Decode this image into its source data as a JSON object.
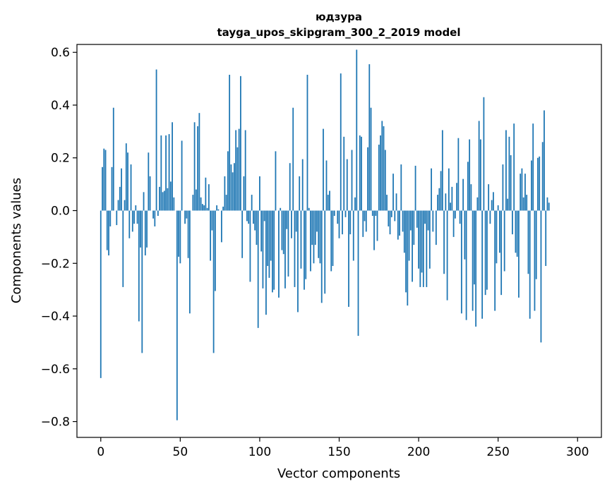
{
  "chart_data": {
    "type": "bar",
    "title_line1": "юдзура",
    "title_line2": "tayga_upos_skipgram_300_2_2019 model",
    "xlabel": "Vector components",
    "ylabel": "Components values",
    "xlim": [
      -15,
      315
    ],
    "ylim": [
      -0.86,
      0.63
    ],
    "x_ticks": [
      0,
      50,
      100,
      150,
      200,
      250,
      300
    ],
    "x_tick_labels": [
      "0",
      "50",
      "100",
      "150",
      "200",
      "250",
      "300"
    ],
    "y_ticks": [
      -0.8,
      -0.6,
      -0.4,
      -0.2,
      0.0,
      0.2,
      0.4,
      0.6
    ],
    "y_tick_labels": [
      "−0.8",
      "−0.6",
      "−0.4",
      "−0.2",
      "0.0",
      "0.2",
      "0.4",
      "0.6"
    ],
    "bar_color": "#1f77b4",
    "grid": false,
    "x": "0..299 (component index)",
    "values": [
      -0.635,
      0.165,
      0.235,
      0.23,
      -0.15,
      -0.17,
      -0.06,
      0.165,
      0.39,
      0.0,
      -0.055,
      0.04,
      0.09,
      0.16,
      -0.29,
      0.04,
      0.255,
      0.22,
      -0.105,
      0.175,
      -0.08,
      -0.05,
      0.02,
      -0.05,
      -0.42,
      -0.14,
      -0.54,
      0.07,
      -0.17,
      -0.14,
      0.22,
      0.13,
      0.0,
      -0.03,
      -0.06,
      0.535,
      -0.02,
      0.09,
      0.285,
      0.07,
      0.075,
      0.285,
      0.085,
      0.29,
      0.11,
      0.335,
      0.05,
      0.0,
      -0.795,
      -0.175,
      -0.2,
      0.265,
      0.0,
      -0.05,
      -0.03,
      -0.18,
      -0.39,
      0.0,
      0.06,
      0.335,
      0.08,
      0.32,
      0.37,
      0.05,
      0.025,
      0.02,
      0.125,
      0.01,
      0.1,
      -0.19,
      -0.075,
      -0.54,
      -0.305,
      0.02,
      0.005,
      0.0,
      -0.12,
      0.015,
      0.13,
      0.06,
      0.225,
      0.515,
      0.175,
      0.145,
      0.18,
      0.305,
      0.24,
      0.31,
      0.51,
      -0.18,
      0.13,
      0.305,
      -0.04,
      -0.05,
      -0.27,
      0.06,
      -0.05,
      -0.075,
      -0.13,
      -0.445,
      0.13,
      -0.155,
      -0.295,
      -0.04,
      -0.395,
      -0.21,
      -0.255,
      -0.19,
      -0.31,
      -0.3,
      0.225,
      0.0,
      -0.33,
      0.01,
      -0.15,
      -0.165,
      -0.295,
      -0.07,
      -0.25,
      0.18,
      -0.105,
      0.39,
      -0.29,
      -0.08,
      -0.385,
      0.13,
      -0.22,
      0.195,
      -0.3,
      -0.26,
      0.515,
      0.01,
      -0.23,
      -0.13,
      -0.2,
      -0.13,
      -0.08,
      -0.18,
      -0.2,
      -0.35,
      0.31,
      -0.315,
      0.19,
      0.06,
      0.075,
      -0.23,
      -0.21,
      -0.02,
      0.0,
      -0.05,
      -0.105,
      0.52,
      -0.09,
      0.28,
      -0.025,
      0.195,
      -0.365,
      -0.09,
      0.23,
      -0.19,
      0.05,
      0.61,
      -0.475,
      0.285,
      0.28,
      -0.1,
      -0.04,
      -0.08,
      0.24,
      0.555,
      0.39,
      -0.02,
      -0.15,
      -0.02,
      -0.115,
      0.25,
      0.285,
      0.34,
      0.32,
      0.23,
      0.06,
      -0.06,
      -0.09,
      -0.025,
      0.14,
      -0.04,
      0.065,
      -0.11,
      -0.095,
      0.175,
      -0.08,
      -0.16,
      -0.31,
      -0.36,
      -0.19,
      -0.075,
      -0.27,
      -0.13,
      0.17,
      -0.065,
      -0.22,
      -0.29,
      -0.235,
      -0.29,
      -0.05,
      -0.29,
      -0.075,
      -0.22,
      0.16,
      -0.08,
      0.0,
      -0.13,
      0.06,
      0.085,
      0.15,
      0.305,
      -0.24,
      0.065,
      -0.34,
      0.16,
      0.03,
      0.09,
      -0.1,
      -0.03,
      0.105,
      0.275,
      -0.05,
      -0.39,
      0.12,
      -0.185,
      -0.415,
      0.185,
      0.27,
      0.1,
      -0.38,
      -0.28,
      -0.44,
      0.05,
      0.34,
      0.27,
      -0.41,
      0.43,
      -0.32,
      -0.3,
      0.1,
      -0.05,
      0.04,
      0.07,
      -0.38,
      -0.2,
      0.02,
      -0.16,
      -0.32,
      0.175,
      -0.23,
      0.305,
      0.045,
      0.28,
      0.21,
      -0.09,
      0.33,
      -0.16,
      -0.175,
      -0.33,
      0.14,
      0.16,
      0.05,
      0.14,
      0.06,
      -0.24,
      -0.41,
      0.19,
      0.33,
      -0.38,
      -0.26,
      0.2,
      0.205,
      -0.5,
      0.26,
      0.38,
      -0.21,
      0.05,
      0.03,
      0.0,
      0.0,
      0.0,
      0.0,
      0.0,
      0.0,
      0.0
    ]
  }
}
